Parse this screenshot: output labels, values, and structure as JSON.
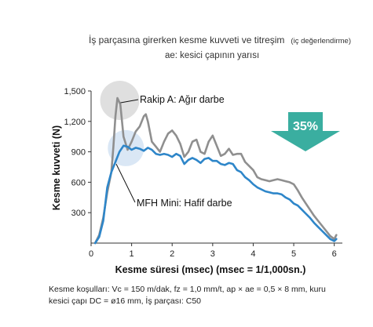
{
  "chart_data": {
    "type": "line",
    "title": "İş parçasına girerken kesme kuvveti ve titreşim",
    "title_note": "(iç değerlendirme)",
    "subtitle": "ae: kesici çapının yarısı",
    "xlabel": "Kesme süresi (msec) (msec = 1/1,000sn.)",
    "ylabel": "Kesme kuvveti (N)",
    "xlim": [
      0,
      6.2
    ],
    "ylim": [
      0,
      1500
    ],
    "x_ticks": [
      "0",
      "1",
      "2",
      "3",
      "4",
      "5",
      "6"
    ],
    "y_ticks": [
      "300",
      "600",
      "900",
      "1,200",
      "1,500"
    ],
    "grid": false,
    "series": [
      {
        "name": "Rakip A: Ağır darbe",
        "color": "#8f8f8f",
        "points": [
          [
            0.1,
            0
          ],
          [
            0.2,
            80
          ],
          [
            0.3,
            250
          ],
          [
            0.4,
            500
          ],
          [
            0.5,
            700
          ],
          [
            0.55,
            950
          ],
          [
            0.6,
            1250
          ],
          [
            0.65,
            1430
          ],
          [
            0.72,
            1370
          ],
          [
            0.8,
            1050
          ],
          [
            0.9,
            920
          ],
          [
            1.0,
            1000
          ],
          [
            1.1,
            1100
          ],
          [
            1.2,
            1150
          ],
          [
            1.3,
            1250
          ],
          [
            1.35,
            1270
          ],
          [
            1.4,
            1200
          ],
          [
            1.5,
            1000
          ],
          [
            1.6,
            950
          ],
          [
            1.7,
            900
          ],
          [
            1.8,
            1000
          ],
          [
            1.9,
            1080
          ],
          [
            2.0,
            1110
          ],
          [
            2.1,
            1060
          ],
          [
            2.2,
            980
          ],
          [
            2.3,
            850
          ],
          [
            2.4,
            900
          ],
          [
            2.5,
            1000
          ],
          [
            2.6,
            1020
          ],
          [
            2.7,
            900
          ],
          [
            2.8,
            880
          ],
          [
            2.9,
            1000
          ],
          [
            3.0,
            1060
          ],
          [
            3.1,
            960
          ],
          [
            3.2,
            860
          ],
          [
            3.3,
            880
          ],
          [
            3.4,
            930
          ],
          [
            3.5,
            870
          ],
          [
            3.6,
            880
          ],
          [
            3.7,
            880
          ],
          [
            3.8,
            800
          ],
          [
            3.9,
            760
          ],
          [
            4.0,
            720
          ],
          [
            4.1,
            650
          ],
          [
            4.2,
            630
          ],
          [
            4.3,
            620
          ],
          [
            4.4,
            610
          ],
          [
            4.5,
            620
          ],
          [
            4.6,
            630
          ],
          [
            4.7,
            620
          ],
          [
            4.8,
            610
          ],
          [
            4.9,
            600
          ],
          [
            5.0,
            580
          ],
          [
            5.1,
            520
          ],
          [
            5.2,
            450
          ],
          [
            5.3,
            390
          ],
          [
            5.4,
            330
          ],
          [
            5.5,
            270
          ],
          [
            5.6,
            220
          ],
          [
            5.7,
            170
          ],
          [
            5.8,
            120
          ],
          [
            5.9,
            70
          ],
          [
            6.0,
            40
          ],
          [
            6.05,
            80
          ]
        ]
      },
      {
        "name": "MFH Mini: Hafif darbe",
        "color": "#2e86c9",
        "points": [
          [
            0.1,
            0
          ],
          [
            0.2,
            60
          ],
          [
            0.3,
            220
          ],
          [
            0.4,
            550
          ],
          [
            0.5,
            700
          ],
          [
            0.6,
            800
          ],
          [
            0.7,
            900
          ],
          [
            0.8,
            960
          ],
          [
            0.9,
            950
          ],
          [
            1.0,
            920
          ],
          [
            1.1,
            940
          ],
          [
            1.2,
            930
          ],
          [
            1.3,
            910
          ],
          [
            1.4,
            940
          ],
          [
            1.5,
            920
          ],
          [
            1.6,
            880
          ],
          [
            1.7,
            870
          ],
          [
            1.8,
            880
          ],
          [
            1.9,
            870
          ],
          [
            2.0,
            850
          ],
          [
            2.1,
            880
          ],
          [
            2.2,
            860
          ],
          [
            2.3,
            780
          ],
          [
            2.4,
            820
          ],
          [
            2.5,
            840
          ],
          [
            2.6,
            820
          ],
          [
            2.7,
            790
          ],
          [
            2.8,
            830
          ],
          [
            2.9,
            840
          ],
          [
            3.0,
            810
          ],
          [
            3.1,
            810
          ],
          [
            3.2,
            780
          ],
          [
            3.3,
            770
          ],
          [
            3.4,
            790
          ],
          [
            3.5,
            780
          ],
          [
            3.6,
            720
          ],
          [
            3.7,
            700
          ],
          [
            3.8,
            650
          ],
          [
            3.9,
            620
          ],
          [
            4.0,
            580
          ],
          [
            4.1,
            550
          ],
          [
            4.2,
            530
          ],
          [
            4.3,
            510
          ],
          [
            4.4,
            500
          ],
          [
            4.5,
            490
          ],
          [
            4.6,
            490
          ],
          [
            4.7,
            480
          ],
          [
            4.8,
            450
          ],
          [
            4.9,
            430
          ],
          [
            5.0,
            390
          ],
          [
            5.1,
            370
          ],
          [
            5.2,
            330
          ],
          [
            5.3,
            290
          ],
          [
            5.4,
            250
          ],
          [
            5.5,
            200
          ],
          [
            5.6,
            160
          ],
          [
            5.7,
            120
          ],
          [
            5.8,
            80
          ],
          [
            5.9,
            40
          ],
          [
            6.0,
            20
          ],
          [
            6.05,
            40
          ]
        ]
      }
    ],
    "annotations": {
      "rakip_label": "Rakip A: Ağır darbe",
      "mfh_label": "MFH Mini: Hafif darbe",
      "rakip_peak": [
        0.65,
        1430
      ],
      "mfh_peak": [
        0.8,
        960
      ]
    },
    "badge": {
      "text": "35%",
      "color": "#3aaea0"
    }
  },
  "conditions": {
    "line1": "Kesme koşulları: Vc = 150 m/dak, fz = 1,0 mm/t, ap × ae = 0,5 × 8 mm, kuru",
    "line2": "kesici çapı DC = ø16 mm, İş parçası: C50"
  }
}
